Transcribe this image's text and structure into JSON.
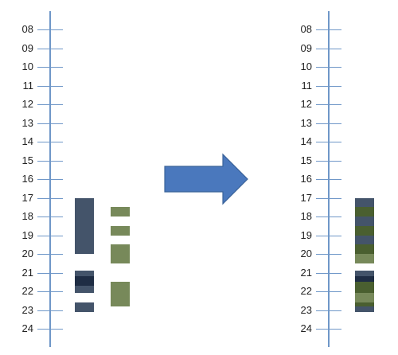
{
  "hours": [
    "08",
    "09",
    "10",
    "11",
    "12",
    "13",
    "14",
    "15",
    "16",
    "17",
    "18",
    "19",
    "20",
    "21",
    "22",
    "23",
    "24"
  ],
  "colors": {
    "axis": "#6f97c8",
    "blue": "#44546a",
    "dark_navy": "#1f2d44",
    "green": "#77895a",
    "dark_green": "#4a5f30",
    "arrow_fill": "#4a78bd",
    "arrow_stroke": "#3b6399"
  },
  "left_timeline": {
    "blue_blocks": [
      {
        "start": 17.0,
        "end": 20.0,
        "color": "blue"
      },
      {
        "start": 20.9,
        "end": 21.2,
        "color": "blue"
      },
      {
        "start": 21.2,
        "end": 21.7,
        "color": "dark_navy"
      },
      {
        "start": 21.7,
        "end": 22.1,
        "color": "blue"
      },
      {
        "start": 22.6,
        "end": 23.1,
        "color": "blue"
      }
    ],
    "green_blocks": [
      {
        "start": 17.5,
        "end": 18.0,
        "color": "green"
      },
      {
        "start": 18.5,
        "end": 19.0,
        "color": "green"
      },
      {
        "start": 19.5,
        "end": 20.5,
        "color": "green"
      },
      {
        "start": 21.5,
        "end": 22.8,
        "color": "green"
      }
    ]
  },
  "right_timeline": {
    "merged_blocks": [
      {
        "start": 17.0,
        "end": 17.5,
        "color": "blue"
      },
      {
        "start": 17.5,
        "end": 18.0,
        "color": "dark_green"
      },
      {
        "start": 18.0,
        "end": 18.5,
        "color": "blue"
      },
      {
        "start": 18.5,
        "end": 19.0,
        "color": "dark_green"
      },
      {
        "start": 19.0,
        "end": 19.5,
        "color": "blue"
      },
      {
        "start": 19.5,
        "end": 20.0,
        "color": "dark_green"
      },
      {
        "start": 20.0,
        "end": 20.5,
        "color": "green"
      },
      {
        "start": 20.9,
        "end": 21.2,
        "color": "blue"
      },
      {
        "start": 21.2,
        "end": 21.5,
        "color": "dark_navy"
      },
      {
        "start": 21.5,
        "end": 21.7,
        "color": "dark_green"
      },
      {
        "start": 21.7,
        "end": 22.1,
        "color": "dark_green"
      },
      {
        "start": 22.1,
        "end": 22.6,
        "color": "green"
      },
      {
        "start": 22.6,
        "end": 22.8,
        "color": "dark_green"
      },
      {
        "start": 22.8,
        "end": 23.1,
        "color": "blue"
      }
    ]
  }
}
